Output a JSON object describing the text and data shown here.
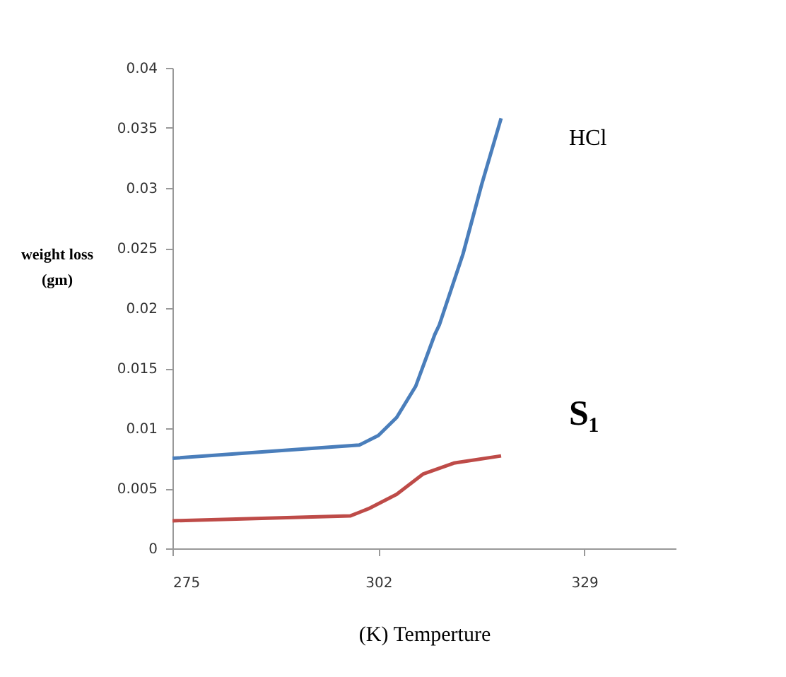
{
  "chart_data": {
    "type": "line",
    "xlabel": "(K) Temperture",
    "ylabel": "weight loss\n(gm)",
    "xlim": [
      275,
      341
    ],
    "xticks": [
      275,
      302,
      329
    ],
    "ylim": [
      0,
      0.04
    ],
    "yticks": [
      0,
      0.005,
      0.01,
      0.015,
      0.02,
      0.025,
      0.03,
      0.035,
      0.04
    ],
    "grid": false,
    "legend": false,
    "marker": "none",
    "line_style": "solid",
    "series": [
      {
        "name": "HCl",
        "color": "#4a7ebb",
        "x": [
          275,
          299.5,
          302,
          304.4,
          306.9,
          309.4,
          310,
          313.1,
          315.6,
          318.1
        ],
        "values": [
          0.0075,
          0.0086,
          0.0094,
          0.0109,
          0.0135,
          0.0178,
          0.0186,
          0.0245,
          0.0304,
          0.0358
        ]
      },
      {
        "name": "S₁",
        "color": "#be4b48",
        "x": [
          275,
          298.3,
          300.7,
          304.4,
          307.9,
          311.9,
          318.1
        ],
        "values": [
          0.0023,
          0.0027,
          0.0033,
          0.0045,
          0.0062,
          0.0071,
          0.0077
        ]
      }
    ]
  }
}
